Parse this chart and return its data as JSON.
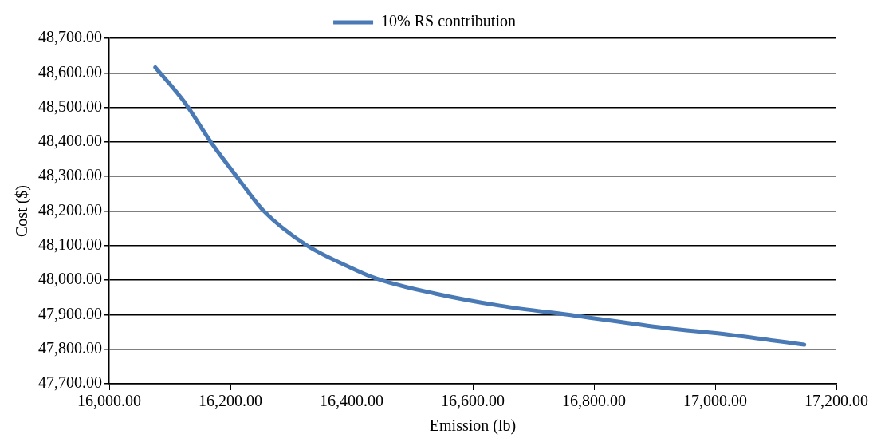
{
  "chart_data": {
    "type": "line",
    "xlabel": "Emission (lb)",
    "ylabel": "Cost ($)",
    "xlim": [
      16000,
      17200
    ],
    "xticks": [
      {
        "value": 16000,
        "label": "16,000.00"
      },
      {
        "value": 16200,
        "label": "16,200.00"
      },
      {
        "value": 16400,
        "label": "16,400.00"
      },
      {
        "value": 16600,
        "label": "16,600.00"
      },
      {
        "value": 16800,
        "label": "16,800.00"
      },
      {
        "value": 17000,
        "label": "17,000.00"
      },
      {
        "value": 17200,
        "label": "17,200.00"
      }
    ],
    "ylim": [
      47700,
      48700
    ],
    "yticks": [
      {
        "value": 47700,
        "label": "47,700.00"
      },
      {
        "value": 47800,
        "label": "47,800.00"
      },
      {
        "value": 47900,
        "label": "47,900.00"
      },
      {
        "value": 48000,
        "label": "48,000.00"
      },
      {
        "value": 48100,
        "label": "48,100.00"
      },
      {
        "value": 48200,
        "label": "48,200.00"
      },
      {
        "value": 48300,
        "label": "48,300.00"
      },
      {
        "value": 48400,
        "label": "48,400.00"
      },
      {
        "value": 48500,
        "label": "48,500.00"
      },
      {
        "value": 48600,
        "label": "48,600.00"
      },
      {
        "value": 48700,
        "label": "48,700.00"
      }
    ],
    "grid": "y",
    "legend": "top",
    "marker": "none",
    "line_style": "solid",
    "series": [
      {
        "name": "10% RS contribution",
        "color": "#4a7ab5",
        "x": [
          16076,
          16123,
          16170,
          16212,
          16254,
          16324,
          16395,
          16440,
          16538,
          16645,
          16770,
          16915,
          17023,
          17147
        ],
        "values": [
          48616,
          48518,
          48394,
          48296,
          48202,
          48103,
          48039,
          48005,
          47961,
          47926,
          47897,
          47862,
          47842,
          47813
        ]
      }
    ]
  }
}
